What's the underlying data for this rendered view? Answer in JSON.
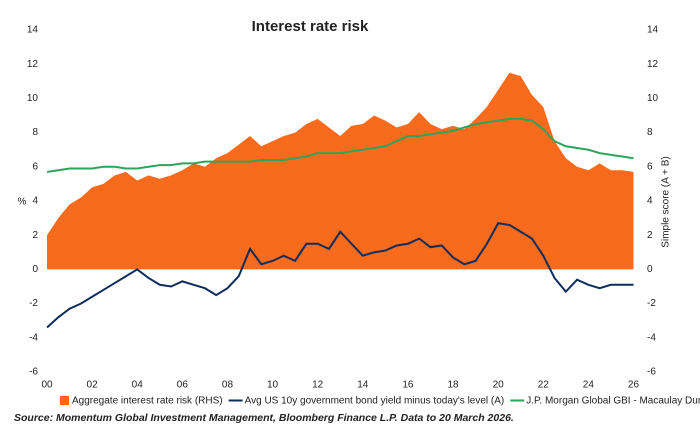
{
  "chart_data": {
    "type": "line",
    "title": "Interest rate risk",
    "y_label": "%",
    "y2_label": "Simple score (A + B)",
    "source": "Source: Momentum Global Investment Management, Bloomberg Finance L.P. Data to 20 March 2026.",
    "x": [
      2000,
      2000.5,
      2001,
      2001.5,
      2002,
      2002.5,
      2003,
      2003.5,
      2004,
      2004.5,
      2005,
      2005.5,
      2006,
      2006.5,
      2007,
      2007.5,
      2008,
      2008.5,
      2009,
      2009.5,
      2010,
      2010.5,
      2011,
      2011.5,
      2012,
      2012.5,
      2013,
      2013.5,
      2014,
      2014.5,
      2015,
      2015.5,
      2016,
      2016.5,
      2017,
      2017.5,
      2018,
      2018.5,
      2019,
      2019.5,
      2020,
      2020.5,
      2021,
      2021.5,
      2022,
      2022.5,
      2023,
      2023.5,
      2024,
      2024.5,
      2025,
      2025.5,
      2026
    ],
    "series": [
      {
        "name": "Aggregate interest rate risk (RHS)",
        "kind": "area",
        "axis": "y2",
        "color": "#f96b1c",
        "values": [
          2.0,
          3,
          3.8,
          4.2,
          4.8,
          5,
          5.5,
          5.7,
          5.2,
          5.5,
          5.3,
          5.5,
          5.8,
          6.2,
          6,
          6.5,
          6.8,
          7.3,
          7.8,
          7.2,
          7.5,
          7.8,
          8,
          8.5,
          8.8,
          8.3,
          7.8,
          8.4,
          8.5,
          9,
          8.7,
          8.3,
          8.5,
          9.2,
          8.5,
          8.2,
          8.4,
          8.2,
          8.8,
          9.5,
          10.5,
          11.5,
          11.3,
          10.2,
          9.5,
          7.5,
          6.5,
          6,
          5.8,
          6.2,
          5.8,
          5.8,
          5.7
        ]
      },
      {
        "name": "Avg US 10y government bond yield minus today's level (A)",
        "kind": "line",
        "axis": "y",
        "color": "#0f2c5c",
        "values": [
          -3.4,
          -2.8,
          -2.3,
          -2,
          -1.6,
          -1.2,
          -0.8,
          -0.4,
          0,
          -0.5,
          -0.9,
          -1,
          -0.7,
          -0.9,
          -1.1,
          -1.5,
          -1.1,
          -0.4,
          1.2,
          0.3,
          0.5,
          0.8,
          0.5,
          1.5,
          1.5,
          1.2,
          2.2,
          1.5,
          0.8,
          1,
          1.1,
          1.4,
          1.5,
          1.8,
          1.3,
          1.4,
          0.7,
          0.3,
          0.5,
          1.5,
          2.7,
          2.6,
          2.2,
          1.8,
          0.8,
          -0.5,
          -1.3,
          -0.6,
          -0.9,
          -1.1,
          -0.9,
          -0.9,
          -0.9
        ]
      },
      {
        "name": "J.P. Morgan Global GBI - Macaulay Duration (B)",
        "kind": "line",
        "axis": "y",
        "color": "#2ea35a",
        "values": [
          5.7,
          5.8,
          5.9,
          5.9,
          5.9,
          6,
          6,
          5.9,
          5.9,
          6,
          6.1,
          6.1,
          6.2,
          6.2,
          6.3,
          6.3,
          6.3,
          6.3,
          6.3,
          6.4,
          6.4,
          6.4,
          6.5,
          6.6,
          6.8,
          6.8,
          6.8,
          6.9,
          7,
          7.1,
          7.2,
          7.5,
          7.8,
          7.8,
          7.9,
          8,
          8.1,
          8.3,
          8.5,
          8.6,
          8.7,
          8.8,
          8.8,
          8.7,
          8.2,
          7.5,
          7.2,
          7.1,
          7,
          6.8,
          6.7,
          6.6,
          6.5
        ]
      }
    ],
    "xlim": [
      2000,
      2026.2
    ],
    "xticks": [
      {
        "value": 2000,
        "label": "00"
      },
      {
        "value": 2002,
        "label": "02"
      },
      {
        "value": 2004,
        "label": "04"
      },
      {
        "value": 2006,
        "label": "06"
      },
      {
        "value": 2008,
        "label": "08"
      },
      {
        "value": 2010,
        "label": "10"
      },
      {
        "value": 2012,
        "label": "12"
      },
      {
        "value": 2014,
        "label": "14"
      },
      {
        "value": 2016,
        "label": "16"
      },
      {
        "value": 2018,
        "label": "18"
      },
      {
        "value": 2020,
        "label": "20"
      },
      {
        "value": 2022,
        "label": "22"
      },
      {
        "value": 2024,
        "label": "24"
      },
      {
        "value": 2026,
        "label": "26"
      }
    ],
    "ylim": [
      -6,
      14
    ],
    "yticks": [
      -6,
      -4,
      -2,
      0,
      2,
      4,
      6,
      8,
      10,
      12,
      14
    ],
    "y2lim": [
      -6,
      14
    ],
    "y2ticks": [
      -6,
      -4,
      -2,
      0,
      2,
      4,
      6,
      8,
      10,
      12,
      14
    ]
  }
}
